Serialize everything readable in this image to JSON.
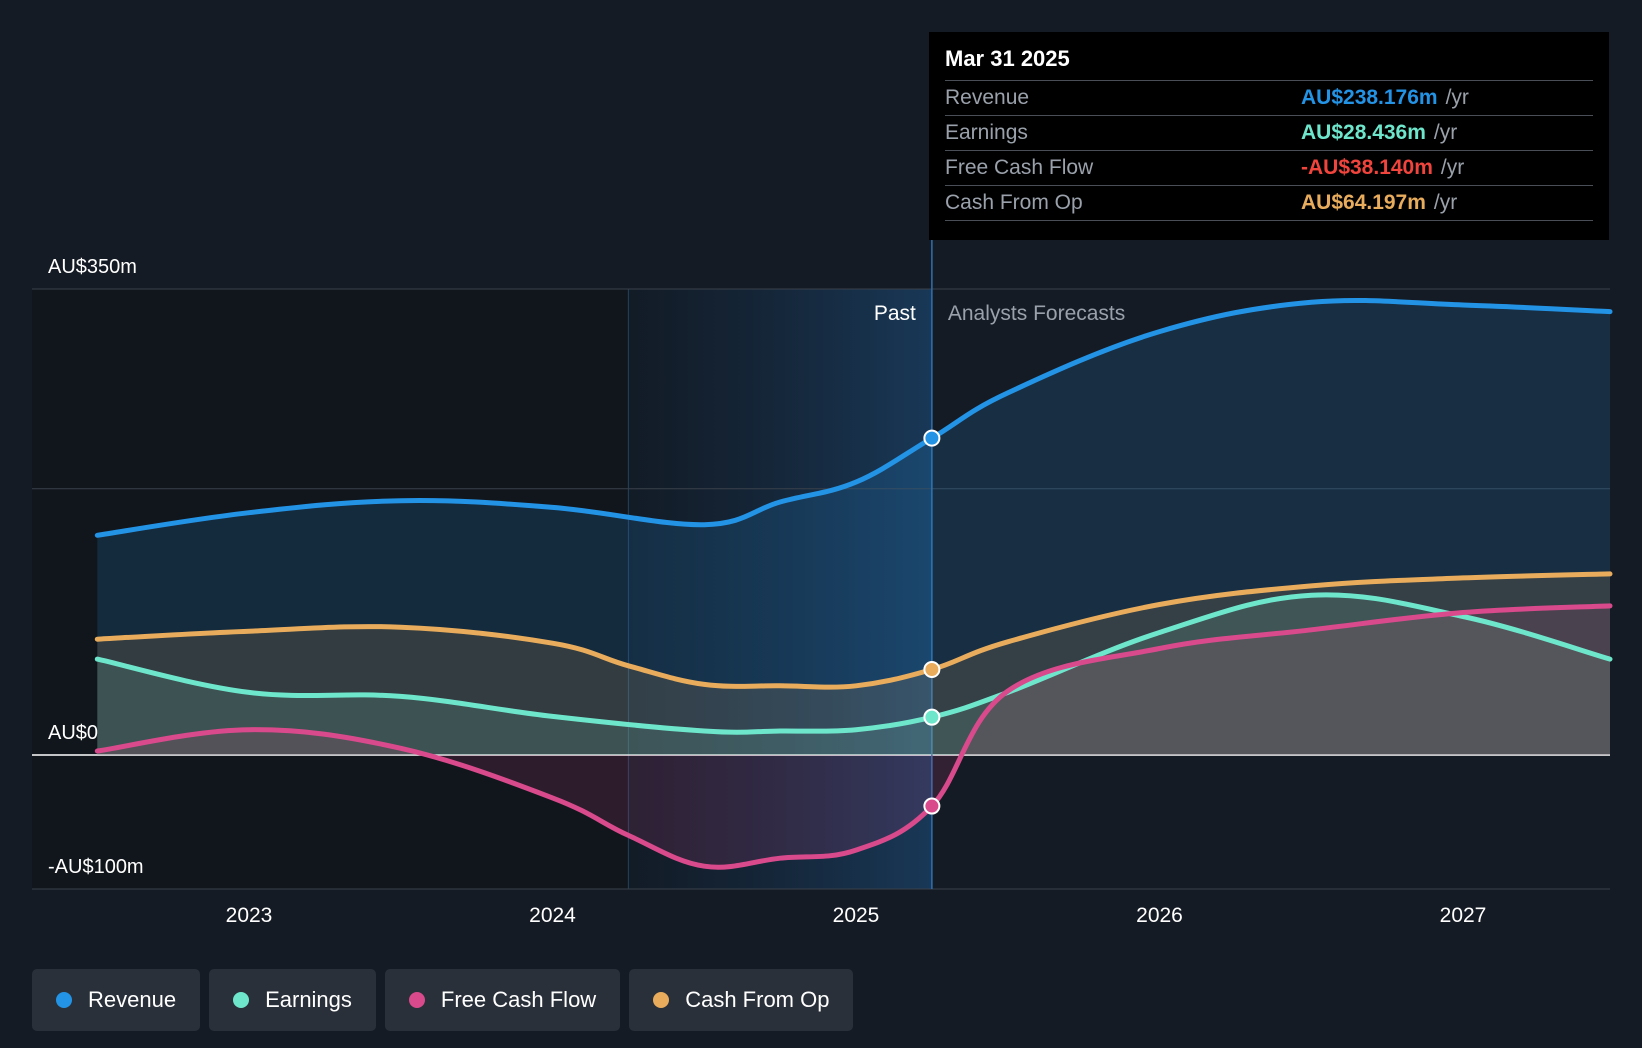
{
  "chart_data": {
    "type": "line",
    "x_ticks": [
      "2023",
      "2024",
      "2025",
      "2026",
      "2027"
    ],
    "x_range": [
      2022.5,
      2027.5
    ],
    "ylim": [
      -100,
      350
    ],
    "y_labels": [
      "AU$350m",
      "AU$0",
      "-AU$100m"
    ],
    "y_label_values": [
      350,
      0,
      -100
    ],
    "y_gridlines": [
      350,
      200,
      0,
      -100
    ],
    "past_label": "Past",
    "forecast_label": "Analysts Forecasts",
    "split_x": 2025.25,
    "highlight_start_x": 2024.25,
    "series": [
      {
        "name": "Revenue",
        "color": "#2393e6",
        "x": [
          2022.5,
          2023.0,
          2023.5,
          2024.0,
          2024.5,
          2024.75,
          2025.0,
          2025.25,
          2025.5,
          2026.0,
          2026.5,
          2027.0,
          2027.5
        ],
        "values": [
          165,
          182,
          191,
          186,
          173,
          190,
          205,
          238,
          272,
          318,
          340,
          338,
          333
        ]
      },
      {
        "name": "Earnings",
        "color": "#6ee6cc",
        "x": [
          2022.5,
          2023.0,
          2023.5,
          2024.0,
          2024.5,
          2024.75,
          2025.0,
          2025.25,
          2025.5,
          2026.0,
          2026.5,
          2027.0,
          2027.5
        ],
        "values": [
          72,
          47,
          44,
          29,
          18,
          18,
          19,
          28.4,
          47,
          92,
          120,
          104,
          72
        ]
      },
      {
        "name": "Free Cash Flow",
        "color": "#d94a8c",
        "x": [
          2022.5,
          2023.0,
          2023.5,
          2024.0,
          2024.25,
          2024.5,
          2024.75,
          2025.0,
          2025.25,
          2025.5,
          2026.0,
          2026.5,
          2027.0,
          2027.5
        ],
        "values": [
          3,
          19,
          5,
          -32,
          -60,
          -83,
          -77,
          -71,
          -38.1,
          48,
          80,
          94,
          107,
          112
        ]
      },
      {
        "name": "Cash From Op",
        "color": "#e8ac5c",
        "x": [
          2022.5,
          2023.0,
          2023.5,
          2024.0,
          2024.25,
          2024.5,
          2024.75,
          2025.0,
          2025.25,
          2025.5,
          2026.0,
          2026.5,
          2027.0,
          2027.5
        ],
        "values": [
          87,
          93,
          96,
          84,
          67,
          53,
          52,
          52,
          64.2,
          85,
          113,
          127,
          133,
          136
        ]
      }
    ]
  },
  "tooltip": {
    "date": "Mar 31 2025",
    "rows": [
      {
        "name": "Revenue",
        "value": "AU$238.176m",
        "unit": "/yr",
        "color": "#2393e6"
      },
      {
        "name": "Earnings",
        "value": "AU$28.436m",
        "unit": "/yr",
        "color": "#6ee6cc"
      },
      {
        "name": "Free Cash Flow",
        "value": "-AU$38.140m",
        "unit": "/yr",
        "color": "#f0443c"
      },
      {
        "name": "Cash From Op",
        "value": "AU$64.197m",
        "unit": "/yr",
        "color": "#e8ac5c"
      }
    ]
  },
  "legend": [
    {
      "label": "Revenue",
      "color": "#2393e6"
    },
    {
      "label": "Earnings",
      "color": "#6ee6cc"
    },
    {
      "label": "Free Cash Flow",
      "color": "#d94a8c"
    },
    {
      "label": "Cash From Op",
      "color": "#e8ac5c"
    }
  ]
}
